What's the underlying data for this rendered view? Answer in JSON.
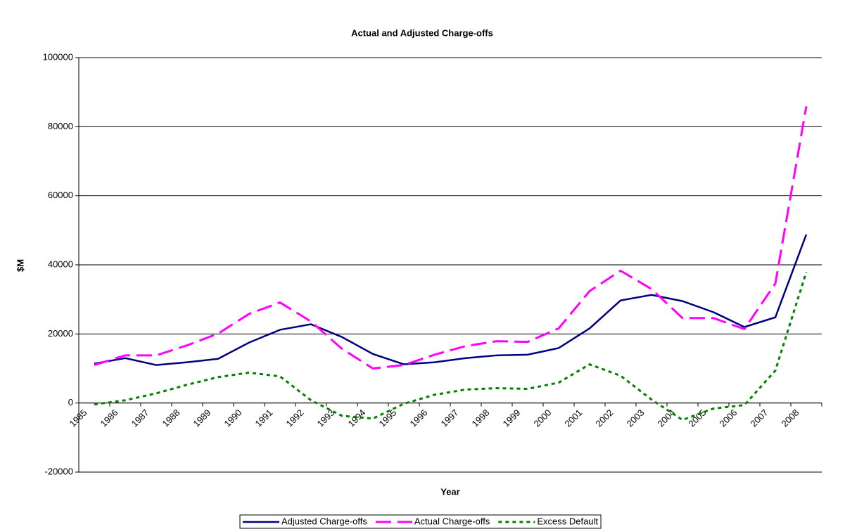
{
  "chart_data": {
    "type": "line",
    "title": "Actual and Adjusted Charge-offs",
    "x_label": "Year",
    "y_label": "$M",
    "categories": [
      "1985",
      "1986",
      "1987",
      "1988",
      "1989",
      "1990",
      "1991",
      "1992",
      "1993",
      "1994",
      "1995",
      "1996",
      "1997",
      "1998",
      "1999",
      "2000",
      "2001",
      "2002",
      "2003",
      "2004",
      "2005",
      "2006",
      "2007",
      "2008"
    ],
    "series": [
      {
        "name": "Adjusted Charge-offs",
        "color": "#000080",
        "line_style": "solid",
        "values": [
          11400,
          13000,
          11000,
          11800,
          12800,
          17500,
          21200,
          22800,
          19100,
          14200,
          11200,
          11800,
          13000,
          13800,
          14000,
          15900,
          21600,
          29700,
          31300,
          29500,
          26300,
          22000,
          24800,
          48800
        ]
      },
      {
        "name": "Actual Charge-offs",
        "color": "#FF00FF",
        "line_style": "dashed",
        "values": [
          11000,
          13800,
          13800,
          16700,
          20100,
          25800,
          29100,
          23600,
          15700,
          10000,
          11000,
          14000,
          16500,
          17900,
          17700,
          21600,
          32400,
          38300,
          33000,
          24600,
          24600,
          21400,
          34600,
          85900
        ]
      },
      {
        "name": "Excess Default",
        "color": "#008000",
        "line_style": "dotted",
        "values": [
          -400,
          800,
          2800,
          5300,
          7500,
          8800,
          7700,
          800,
          -3700,
          -4500,
          -200,
          2400,
          3900,
          4300,
          4100,
          5900,
          11200,
          7900,
          1000,
          -4900,
          -1600,
          -600,
          9400,
          37900
        ]
      }
    ],
    "ylim": [
      -20000,
      100000
    ],
    "yticks": [
      -20000,
      0,
      20000,
      40000,
      60000,
      80000,
      100000
    ],
    "grid": true,
    "legend": "bottom"
  }
}
